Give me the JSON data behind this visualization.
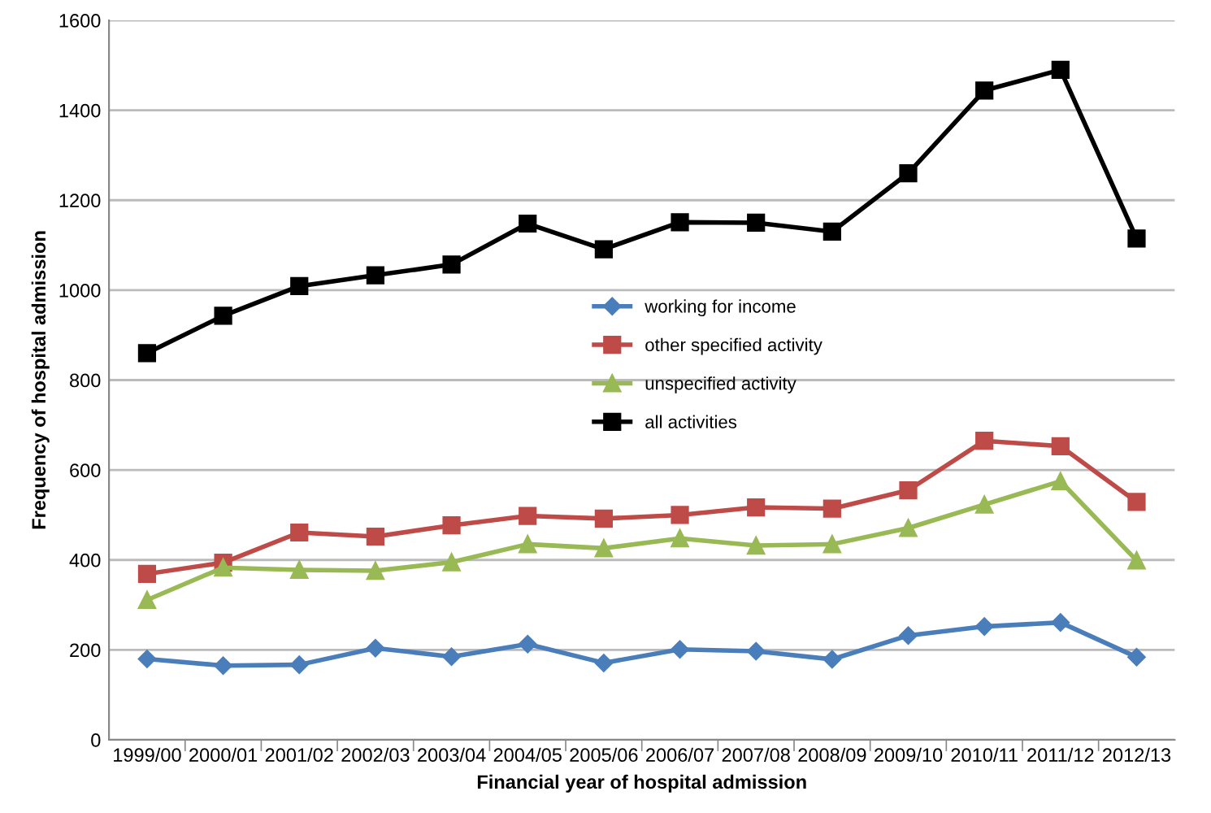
{
  "chart_data": {
    "type": "line",
    "xlabel": "Financial year of hospital admission",
    "ylabel": "Frequency of hospital admission",
    "categories": [
      "1999/00",
      "2000/01",
      "2001/02",
      "2002/03",
      "2003/04",
      "2004/05",
      "2005/06",
      "2006/07",
      "2007/08",
      "2008/09",
      "2009/10",
      "2010/11",
      "2011/12",
      "2012/13"
    ],
    "series": [
      {
        "name": "working for income",
        "color": "#4a7ebb",
        "marker": "diamond",
        "values": [
          180,
          165,
          167,
          204,
          185,
          213,
          171,
          201,
          197,
          179,
          232,
          252,
          261,
          184
        ]
      },
      {
        "name": "other specified activity",
        "color": "#be4b48",
        "marker": "square",
        "values": [
          369,
          394,
          461,
          452,
          477,
          498,
          492,
          500,
          517,
          514,
          555,
          665,
          653,
          529
        ]
      },
      {
        "name": "unspecified activity",
        "color": "#98b954",
        "marker": "triangle",
        "values": [
          311,
          383,
          378,
          376,
          395,
          435,
          426,
          448,
          432,
          435,
          471,
          523,
          575,
          399
        ]
      },
      {
        "name": "all activities",
        "color": "#000000",
        "marker": "square",
        "values": [
          860,
          943,
          1009,
          1033,
          1057,
          1148,
          1091,
          1151,
          1150,
          1130,
          1260,
          1444,
          1490,
          1115
        ]
      }
    ],
    "ylim": [
      0,
      1600
    ],
    "yticks": [
      0,
      200,
      400,
      600,
      800,
      1000,
      1200,
      1400,
      1600
    ],
    "grid": "y",
    "legend": "center",
    "line_style": "solid"
  }
}
